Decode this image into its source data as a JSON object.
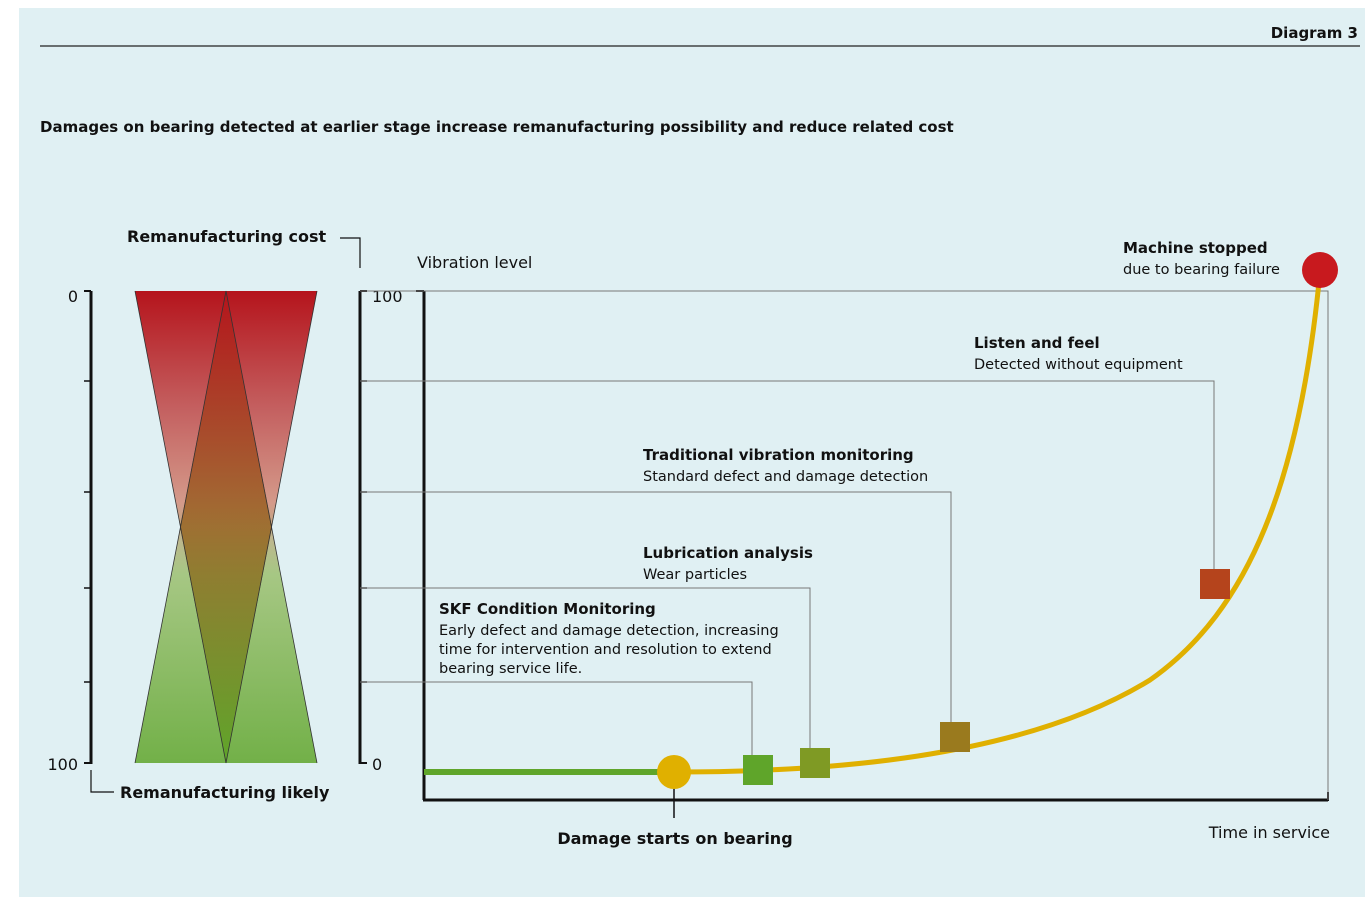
{
  "header": {
    "diagram_label": "Diagram 3",
    "title": "Damages on bearing detected at earlier stage increase remanufacturing possibility and reduce related cost"
  },
  "left_gauge": {
    "top_label": "Remanufacturing cost",
    "bottom_label": "Remanufacturing likely",
    "left_tick_top": "0",
    "left_tick_bottom": "100",
    "right_tick_top": "100",
    "right_tick_bottom": "0"
  },
  "chart": {
    "ylabel": "Vibration level",
    "xlabel": "Time in service",
    "start_label": "Damage starts on bearing"
  },
  "stages": [
    {
      "title": "SKF Condition Monitoring",
      "lines": [
        "Early defect and damage detection, increasing",
        "time for intervention and resolution to extend",
        "bearing service life."
      ],
      "color": "#5fa52a"
    },
    {
      "title": "Lubrication analysis",
      "lines": [
        "Wear particles"
      ],
      "color": "#7f9a24"
    },
    {
      "title": "Traditional vibration monitoring",
      "lines": [
        "Standard defect and damage detection"
      ],
      "color": "#9a7a1e"
    },
    {
      "title": "Listen and feel",
      "lines": [
        "Detected without equipment"
      ],
      "color": "#b5441c"
    },
    {
      "title": "Machine stopped",
      "lines": [
        "due to bearing failure"
      ],
      "color": "#c8191e"
    }
  ],
  "colors": {
    "background": "#e0f0f3",
    "curve": "#e0b000",
    "baseline": "#5fa52a",
    "damage_start": "#e0b000"
  }
}
